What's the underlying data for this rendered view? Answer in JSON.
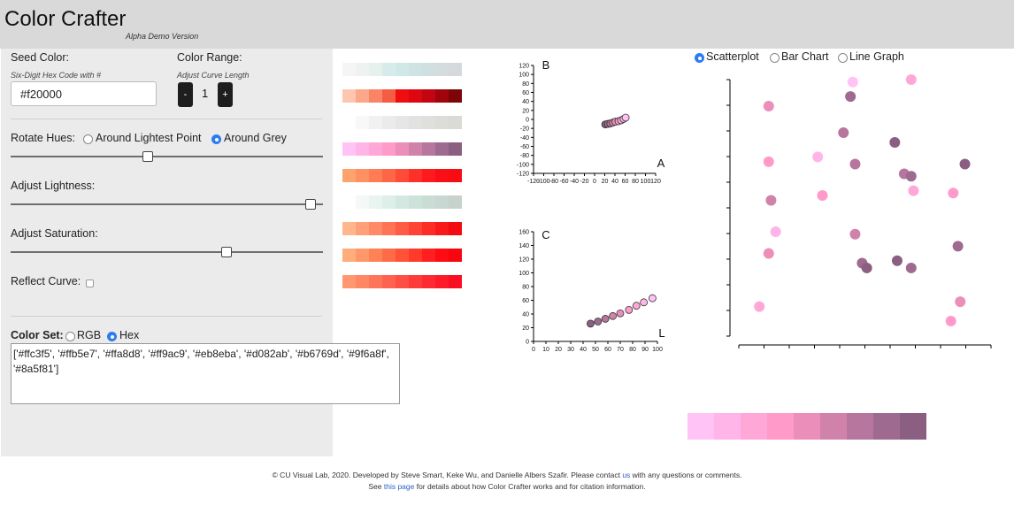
{
  "header": {
    "title": "Color Crafter",
    "subtitle": "Alpha Demo Version"
  },
  "controls": {
    "seed_color_label": "Seed Color:",
    "seed_color_hint": "Six-Digit Hex Code with #",
    "seed_color_value": "#f20000",
    "color_range_label": "Color Range:",
    "color_range_hint": "Adjust Curve Length",
    "color_range_value": "1",
    "decrement_label": "-",
    "increment_label": "+",
    "rotate_hues_label": "Rotate Hues:",
    "rotate_options": [
      "Around Lightest Point",
      "Around Grey"
    ],
    "rotate_selected": 1,
    "rotate_slider": 0.44,
    "adjust_lightness_label": "Adjust Lightness:",
    "lightness_slider": 0.96,
    "adjust_saturation_label": "Adjust Saturation:",
    "saturation_slider": 0.69,
    "reflect_curve_label": "Reflect Curve:",
    "reflect_curve_checked": false,
    "color_set_label": "Color Set:",
    "color_set_options": [
      "RGB",
      "Hex"
    ],
    "color_set_selected": 1,
    "color_set_output": "['#ffc3f5', '#ffb5e7', '#ffa8d8', '#ff9ac9', '#eb8eba', '#d082ab', '#b6769d', '#9f6a8f', '#8a5f81']"
  },
  "ramps": [
    [
      "#f5f5f5",
      "#eef3f1",
      "#e6f1ee",
      "#d6eceb",
      "#cfe9e7",
      "#cfe3e3",
      "#d0dfe0",
      "#d4dcdd",
      "#d5d9db"
    ],
    [
      "#fec6b0",
      "#fca68a",
      "#f98466",
      "#f55c44",
      "#f00d0f",
      "#dd0712",
      "#c20511",
      "#a0040c",
      "#7d0508"
    ],
    [
      "#ffffff",
      "#f8f8f8",
      "#f1f1f1",
      "#ebebeb",
      "#e6e6e6",
      "#e2e2e1",
      "#dfdfdc",
      "#dcdcd9",
      "#dadad7"
    ],
    [
      "#ffc3f5",
      "#ffb5e7",
      "#ffa8d8",
      "#ff9ac9",
      "#eb8eba",
      "#d082ab",
      "#b6769d",
      "#9f6a8f",
      "#8a5f81"
    ],
    [
      "#ffa36e",
      "#ff9061",
      "#ff7c54",
      "#ff6646",
      "#ff4c38",
      "#ff2f29",
      "#ff1a1d",
      "#fb0f16",
      "#f60c12"
    ],
    [
      "#ffffff",
      "#f4f8f6",
      "#e9f3ef",
      "#deeee8",
      "#d3e8e1",
      "#cbe3da",
      "#c9ddd5",
      "#c8d7d1",
      "#c8d2cd"
    ],
    [
      "#ffb68d",
      "#ffa07a",
      "#ff8a68",
      "#ff7356",
      "#ff5b45",
      "#ff4335",
      "#fd2c27",
      "#f9191a",
      "#f30b10"
    ],
    [
      "#ffad7c",
      "#ff9868",
      "#ff8256",
      "#ff6b46",
      "#ff5338",
      "#ff3a2b",
      "#ff1f1f",
      "#fd0c14",
      "#f8060f"
    ],
    [
      "#ff9870",
      "#ff8764",
      "#ff7559",
      "#ff624e",
      "#ff4e44",
      "#ff3b3a",
      "#ff2a31",
      "#ff1a2a",
      "#fb0d22"
    ]
  ],
  "plot_ab": {
    "label_b": "B",
    "label_a": "A",
    "x_ticks": [
      "-120",
      "-100",
      "-80",
      "-60",
      "-40",
      "-20",
      "0",
      "20",
      "40",
      "60",
      "80",
      "100",
      "120"
    ],
    "y_ticks": [
      "120",
      "100",
      "80",
      "60",
      "40",
      "20",
      "0",
      "-20",
      "-40",
      "-60",
      "-80",
      "-100",
      "-120"
    ],
    "points": [
      {
        "a": 21,
        "b": -11,
        "color": "#8a5f81"
      },
      {
        "a": 26,
        "b": -10,
        "color": "#9f6a8f"
      },
      {
        "a": 31,
        "b": -9,
        "color": "#b6769d"
      },
      {
        "a": 36,
        "b": -7,
        "color": "#d082ab"
      },
      {
        "a": 41,
        "b": -5,
        "color": "#eb8eba"
      },
      {
        "a": 47,
        "b": -4,
        "color": "#ff9ac9"
      },
      {
        "a": 52,
        "b": -2,
        "color": "#ffa8d8"
      },
      {
        "a": 57,
        "b": 1,
        "color": "#ffb5e7"
      },
      {
        "a": 61,
        "b": 4,
        "color": "#ffc3f5"
      }
    ]
  },
  "plot_cl": {
    "label_c": "C",
    "label_l": "L",
    "x_ticks": [
      "0",
      "10",
      "20",
      "30",
      "40",
      "50",
      "60",
      "70",
      "80",
      "90",
      "100"
    ],
    "y_ticks": [
      "160",
      "140",
      "120",
      "100",
      "80",
      "60",
      "40",
      "20",
      "0"
    ],
    "points": [
      {
        "l": 46,
        "c": 26,
        "color": "#8a5f81"
      },
      {
        "l": 52,
        "c": 29,
        "color": "#9f6a8f"
      },
      {
        "l": 58,
        "c": 33,
        "color": "#b6769d"
      },
      {
        "l": 64,
        "c": 37,
        "color": "#d082ab"
      },
      {
        "l": 70,
        "c": 41,
        "color": "#eb8eba"
      },
      {
        "l": 77,
        "c": 46,
        "color": "#ff9ac9"
      },
      {
        "l": 83,
        "c": 52,
        "color": "#ffa8d8"
      },
      {
        "l": 89,
        "c": 57,
        "color": "#ffb5e7"
      },
      {
        "l": 96,
        "c": 63,
        "color": "#ffc3f5"
      }
    ]
  },
  "chart_tabs": {
    "options": [
      "Scatterplot",
      "Bar Chart",
      "Line Graph"
    ],
    "selected": 0
  },
  "scatter": {
    "points": [
      {
        "x": 0.05,
        "y": 0.06,
        "c": "#ffa8d8"
      },
      {
        "x": 0.09,
        "y": 0.28,
        "c": "#eb8eba"
      },
      {
        "x": 0.09,
        "y": 0.66,
        "c": "#ff9ac9"
      },
      {
        "x": 0.09,
        "y": 0.89,
        "c": "#eb8eba"
      },
      {
        "x": 0.1,
        "y": 0.5,
        "c": "#d082ab"
      },
      {
        "x": 0.12,
        "y": 0.37,
        "c": "#ffb5e7"
      },
      {
        "x": 0.3,
        "y": 0.68,
        "c": "#ffb5e7"
      },
      {
        "x": 0.32,
        "y": 0.52,
        "c": "#ff9ac9"
      },
      {
        "x": 0.41,
        "y": 0.78,
        "c": "#b6769d"
      },
      {
        "x": 0.44,
        "y": 0.93,
        "c": "#9f6a8f"
      },
      {
        "x": 0.45,
        "y": 0.99,
        "c": "#ffc3f5"
      },
      {
        "x": 0.46,
        "y": 0.65,
        "c": "#b6769d"
      },
      {
        "x": 0.46,
        "y": 0.36,
        "c": "#d082ab"
      },
      {
        "x": 0.49,
        "y": 0.24,
        "c": "#9f6a8f"
      },
      {
        "x": 0.51,
        "y": 0.22,
        "c": "#8a5f81"
      },
      {
        "x": 0.63,
        "y": 0.74,
        "c": "#8a5f81"
      },
      {
        "x": 0.64,
        "y": 0.25,
        "c": "#8a5f81"
      },
      {
        "x": 0.67,
        "y": 0.61,
        "c": "#b6769d"
      },
      {
        "x": 0.7,
        "y": 1.0,
        "c": "#ffa8d8"
      },
      {
        "x": 0.7,
        "y": 0.6,
        "c": "#9f6a8f"
      },
      {
        "x": 0.7,
        "y": 0.22,
        "c": "#9f6a8f"
      },
      {
        "x": 0.71,
        "y": 0.54,
        "c": "#ffa8d8"
      },
      {
        "x": 0.88,
        "y": 0.53,
        "c": "#ff9ac9"
      },
      {
        "x": 0.9,
        "y": 0.31,
        "c": "#9f6a8f"
      },
      {
        "x": 0.93,
        "y": 0.65,
        "c": "#8a5f81"
      },
      {
        "x": 0.91,
        "y": 0.08,
        "c": "#eb8eba"
      },
      {
        "x": 0.87,
        "y": 0.0,
        "c": "#ff9ac9"
      }
    ]
  },
  "bottom_ramp": [
    "#ffc3f5",
    "#ffb5e7",
    "#ffa8d8",
    "#ff9ac9",
    "#eb8eba",
    "#d082ab",
    "#b6769d",
    "#9f6a8f",
    "#8a5f81"
  ],
  "footer": {
    "line1_pre": "© CU Visual Lab, 2020. Developed by Steve Smart, Keke Wu, and Danielle Albers Szafir. Please contact ",
    "line1_link": "us",
    "line1_post": " with any questions or comments.",
    "line2_pre": "See ",
    "line2_link": "this page",
    "line2_post": " for details about how Color Crafter works and for citation information."
  }
}
